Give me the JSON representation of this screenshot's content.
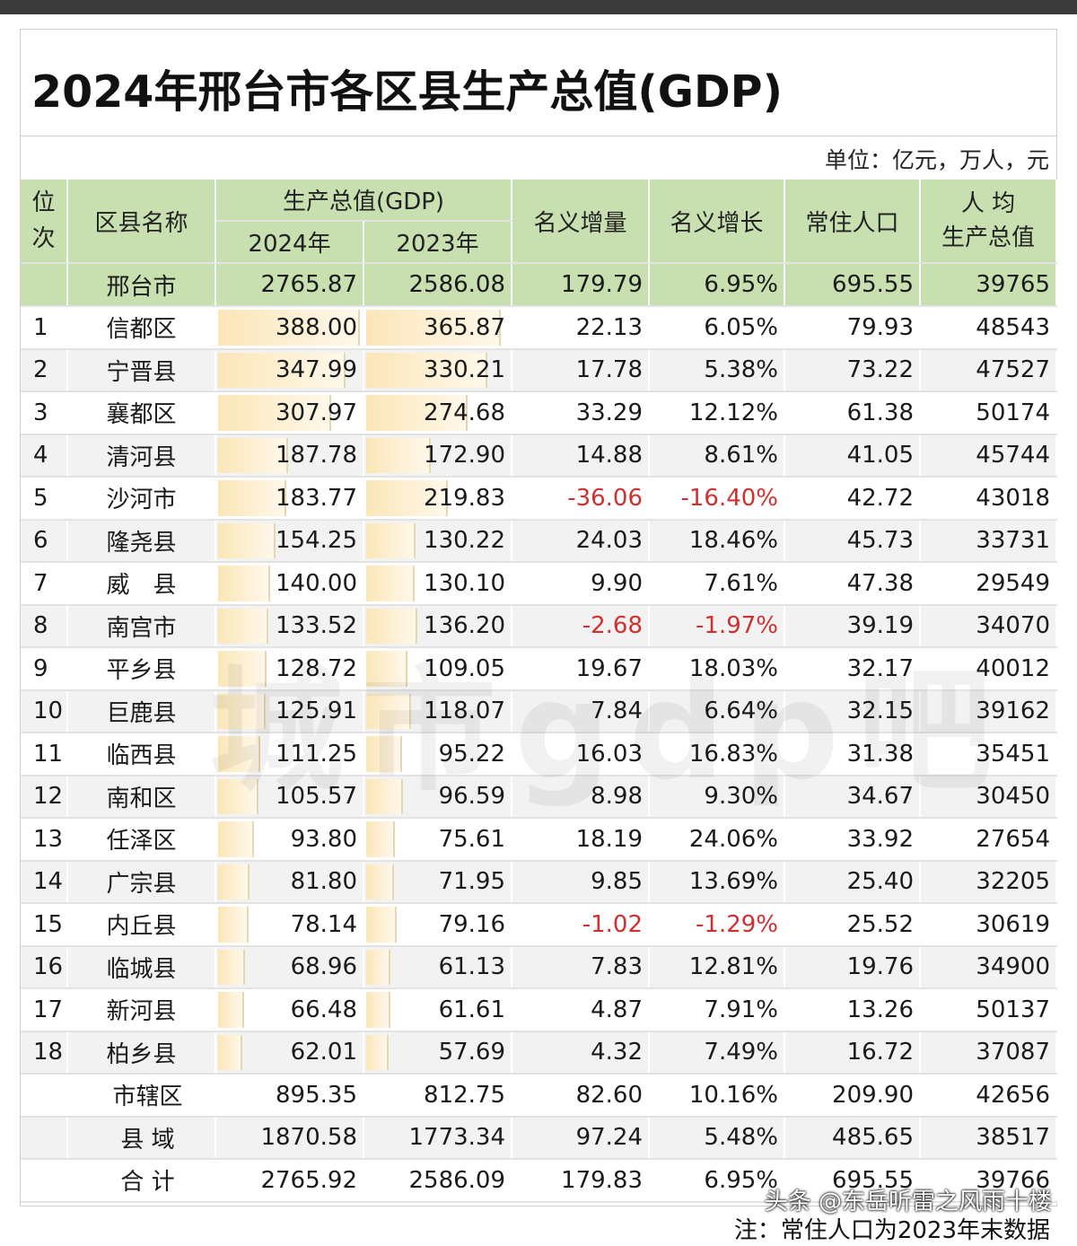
{
  "title": "2024年邢台市各区县生产总值(GDP)",
  "unit": "单位：亿元，万人，元",
  "headers": {
    "rank_a": "位",
    "rank_b": "次",
    "name": "区县名称",
    "gdp": "生产总值(GDP)",
    "y2024": "2024年",
    "y2023": "2023年",
    "inc": "名义增量",
    "growth": "名义增长",
    "pop": "常住人口",
    "percap_a": "人 均",
    "percap_b": "生产总值"
  },
  "city": {
    "name": "邢台市",
    "g2024": "2765.87",
    "g2023": "2586.08",
    "inc": "179.79",
    "growth": "6.95%",
    "pop": "695.55",
    "percap": "39765"
  },
  "rows": [
    {
      "rank": "1",
      "name": "信都区",
      "g2024": "388.00",
      "g2023": "365.87",
      "inc": "22.13",
      "growth": "6.05%",
      "pop": "79.93",
      "percap": "48543"
    },
    {
      "rank": "2",
      "name": "宁晋县",
      "g2024": "347.99",
      "g2023": "330.21",
      "inc": "17.78",
      "growth": "5.38%",
      "pop": "73.22",
      "percap": "47527"
    },
    {
      "rank": "3",
      "name": "襄都区",
      "g2024": "307.97",
      "g2023": "274.68",
      "inc": "33.29",
      "growth": "12.12%",
      "pop": "61.38",
      "percap": "50174"
    },
    {
      "rank": "4",
      "name": "清河县",
      "g2024": "187.78",
      "g2023": "172.90",
      "inc": "14.88",
      "growth": "8.61%",
      "pop": "41.05",
      "percap": "45744"
    },
    {
      "rank": "5",
      "name": "沙河市",
      "g2024": "183.77",
      "g2023": "219.83",
      "inc": "-36.06",
      "growth": "-16.40%",
      "pop": "42.72",
      "percap": "43018"
    },
    {
      "rank": "6",
      "name": "隆尧县",
      "g2024": "154.25",
      "g2023": "130.22",
      "inc": "24.03",
      "growth": "18.46%",
      "pop": "45.73",
      "percap": "33731"
    },
    {
      "rank": "7",
      "name": "威　县",
      "g2024": "140.00",
      "g2023": "130.10",
      "inc": "9.90",
      "growth": "7.61%",
      "pop": "47.38",
      "percap": "29549"
    },
    {
      "rank": "8",
      "name": "南宫市",
      "g2024": "133.52",
      "g2023": "136.20",
      "inc": "-2.68",
      "growth": "-1.97%",
      "pop": "39.19",
      "percap": "34070"
    },
    {
      "rank": "9",
      "name": "平乡县",
      "g2024": "128.72",
      "g2023": "109.05",
      "inc": "19.67",
      "growth": "18.03%",
      "pop": "32.17",
      "percap": "40012"
    },
    {
      "rank": "10",
      "name": "巨鹿县",
      "g2024": "125.91",
      "g2023": "118.07",
      "inc": "7.84",
      "growth": "6.64%",
      "pop": "32.15",
      "percap": "39162"
    },
    {
      "rank": "11",
      "name": "临西县",
      "g2024": "111.25",
      "g2023": "95.22",
      "inc": "16.03",
      "growth": "16.83%",
      "pop": "31.38",
      "percap": "35451"
    },
    {
      "rank": "12",
      "name": "南和区",
      "g2024": "105.57",
      "g2023": "96.59",
      "inc": "8.98",
      "growth": "9.30%",
      "pop": "34.67",
      "percap": "30450"
    },
    {
      "rank": "13",
      "name": "任泽区",
      "g2024": "93.80",
      "g2023": "75.61",
      "inc": "18.19",
      "growth": "24.06%",
      "pop": "33.92",
      "percap": "27654"
    },
    {
      "rank": "14",
      "name": "广宗县",
      "g2024": "81.80",
      "g2023": "71.95",
      "inc": "9.85",
      "growth": "13.69%",
      "pop": "25.40",
      "percap": "32205"
    },
    {
      "rank": "15",
      "name": "内丘县",
      "g2024": "78.14",
      "g2023": "79.16",
      "inc": "-1.02",
      "growth": "-1.29%",
      "pop": "25.52",
      "percap": "30619"
    },
    {
      "rank": "16",
      "name": "临城县",
      "g2024": "68.96",
      "g2023": "61.13",
      "inc": "7.83",
      "growth": "12.81%",
      "pop": "19.76",
      "percap": "34900"
    },
    {
      "rank": "17",
      "name": "新河县",
      "g2024": "66.48",
      "g2023": "61.61",
      "inc": "4.87",
      "growth": "7.91%",
      "pop": "13.26",
      "percap": "50137"
    },
    {
      "rank": "18",
      "name": "柏乡县",
      "g2024": "62.01",
      "g2023": "57.69",
      "inc": "4.32",
      "growth": "7.49%",
      "pop": "16.72",
      "percap": "37087"
    }
  ],
  "summary": [
    {
      "name": "市辖区",
      "g2024": "895.35",
      "g2023": "812.75",
      "inc": "82.60",
      "growth": "10.16%",
      "pop": "209.90",
      "percap": "42656"
    },
    {
      "name": "县 域",
      "g2024": "1870.58",
      "g2023": "1773.34",
      "inc": "97.24",
      "growth": "5.48%",
      "pop": "485.65",
      "percap": "38517"
    },
    {
      "name": "合 计",
      "g2024": "2765.92",
      "g2023": "2586.09",
      "inc": "179.83",
      "growth": "6.95%",
      "pop": "695.55",
      "percap": "39766"
    }
  ],
  "watermark": "城市gdp吧",
  "credit": "头条 @东岳听雷之风雨十楼",
  "note": "注：常住人口为2023年末数据",
  "colors": {
    "header_bg": "#c8e0b0",
    "bar_fill": "#fbe6b8",
    "negative": "#d03030"
  }
}
